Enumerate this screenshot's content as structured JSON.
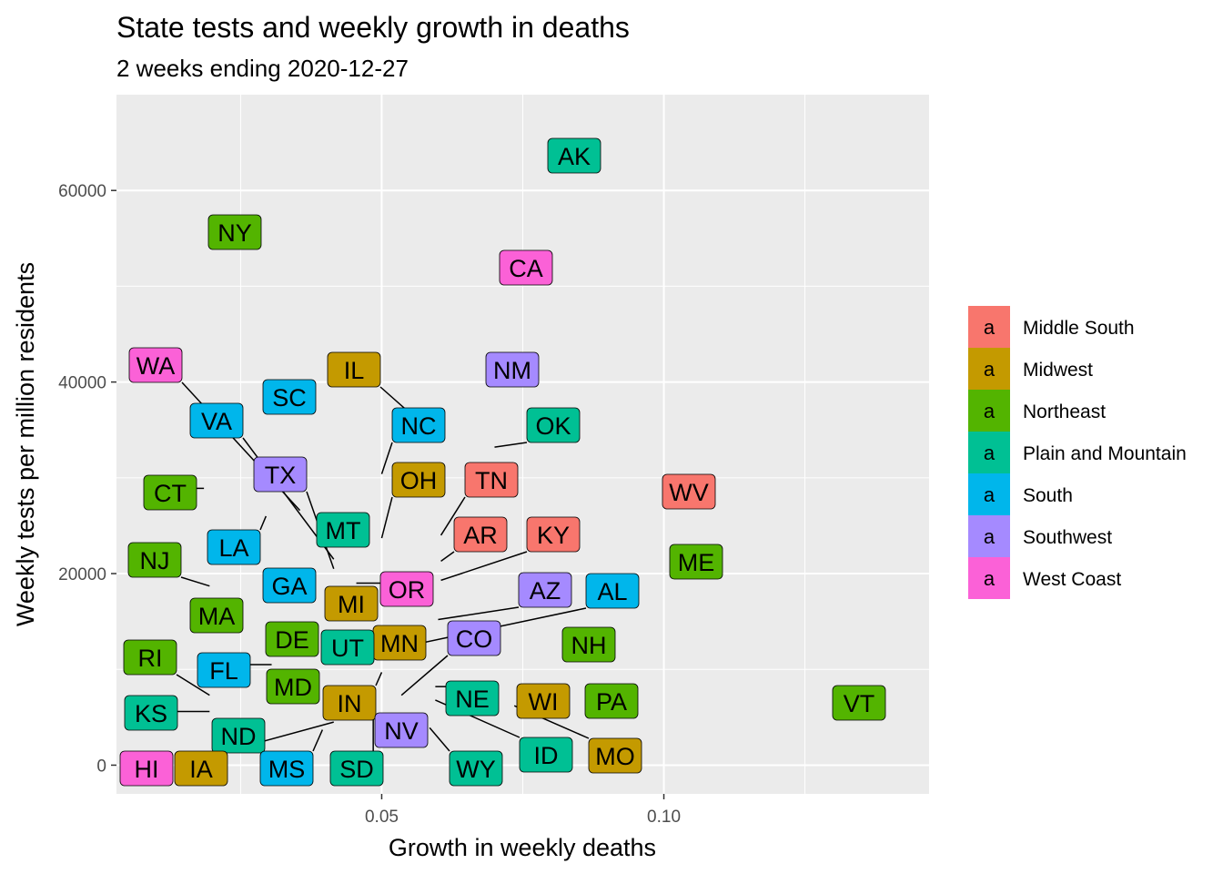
{
  "chart_data": {
    "type": "scatter",
    "title": "State tests and weekly growth in deaths",
    "subtitle": "2 weeks ending 2020-12-27",
    "xlabel": "Growth in weekly deaths",
    "ylabel": "Weekly tests per million residents",
    "xlim": [
      0.003,
      0.147
    ],
    "ylim": [
      -3000,
      70000
    ],
    "x_ticks": [
      0.05,
      0.1
    ],
    "x_tick_labels": [
      "0.05",
      "0.10"
    ],
    "x_minor": [
      0.025,
      0.075,
      0.125
    ],
    "y_ticks": [
      0,
      20000,
      40000,
      60000
    ],
    "y_tick_labels": [
      "0",
      "20000",
      "40000",
      "60000"
    ],
    "y_minor": [
      10000,
      30000,
      50000
    ],
    "grid": true,
    "legend_position": "right",
    "legend_key_glyph": "a",
    "regions": [
      {
        "name": "Middle South",
        "color": "#F8766D"
      },
      {
        "name": "Midwest",
        "color": "#C49A00"
      },
      {
        "name": "Northeast",
        "color": "#53B400"
      },
      {
        "name": "Plain and Mountain",
        "color": "#00C094"
      },
      {
        "name": "South",
        "color": "#00B6EB"
      },
      {
        "name": "Southwest",
        "color": "#A58AFF"
      },
      {
        "name": "West Coast",
        "color": "#FB61D7"
      }
    ],
    "points": [
      {
        "label": "AK",
        "region": "Plain and Mountain",
        "x": 0.0835,
        "y": 64800
      },
      {
        "label": "NY",
        "region": "Northeast",
        "x": 0.0255,
        "y": 56400
      },
      {
        "label": "CA",
        "region": "West Coast",
        "x": 0.0755,
        "y": 52700
      },
      {
        "label": "WA",
        "region": "West Coast",
        "x": 0.0355,
        "y": 26600
      },
      {
        "label": "IL",
        "region": "Midwest",
        "x": 0.0555,
        "y": 36500
      },
      {
        "label": "NM",
        "region": "Southwest",
        "x": 0.0725,
        "y": 42000
      },
      {
        "label": "SC",
        "region": "South",
        "x": 0.0325,
        "y": 39100
      },
      {
        "label": "VA",
        "region": "South",
        "x": 0.0415,
        "y": 21500
      },
      {
        "label": "NC",
        "region": "South",
        "x": 0.05,
        "y": 30400
      },
      {
        "label": "OK",
        "region": "Plain and Mountain",
        "x": 0.07,
        "y": 33200
      },
      {
        "label": "TX",
        "region": "Southwest",
        "x": 0.0415,
        "y": 20500
      },
      {
        "label": "OH",
        "region": "Midwest",
        "x": 0.05,
        "y": 23700
      },
      {
        "label": "TN",
        "region": "Middle South",
        "x": 0.0605,
        "y": 24000
      },
      {
        "label": "WV",
        "region": "Middle South",
        "x": 0.1045,
        "y": 29100
      },
      {
        "label": "CT",
        "region": "Northeast",
        "x": 0.0185,
        "y": 28900
      },
      {
        "label": "MT",
        "region": "Plain and Mountain",
        "x": 0.042,
        "y": 24500
      },
      {
        "label": "AR",
        "region": "Middle South",
        "x": 0.0605,
        "y": 21300
      },
      {
        "label": "KY",
        "region": "Middle South",
        "x": 0.0605,
        "y": 19300
      },
      {
        "label": "LA",
        "region": "South",
        "x": 0.0295,
        "y": 26000
      },
      {
        "label": "ME",
        "region": "Northeast",
        "x": 0.1055,
        "y": 22000
      },
      {
        "label": "NJ",
        "region": "Northeast",
        "x": 0.0195,
        "y": 18700
      },
      {
        "label": "OR",
        "region": "West Coast",
        "x": 0.0455,
        "y": 19000
      },
      {
        "label": "GA",
        "region": "South",
        "x": 0.0325,
        "y": 19200
      },
      {
        "label": "AZ",
        "region": "Southwest",
        "x": 0.06,
        "y": 15200
      },
      {
        "label": "AL",
        "region": "South",
        "x": 0.055,
        "y": 12500
      },
      {
        "label": "MI",
        "region": "Midwest",
        "x": 0.0445,
        "y": 17000
      },
      {
        "label": "MA",
        "region": "Northeast",
        "x": 0.0225,
        "y": 16300
      },
      {
        "label": "NH",
        "region": "Northeast",
        "x": 0.0915,
        "y": 12800
      },
      {
        "label": "DE",
        "region": "Northeast",
        "x": 0.0335,
        "y": 13800
      },
      {
        "label": "MN",
        "region": "Midwest",
        "x": 0.0455,
        "y": 13300
      },
      {
        "label": "CO",
        "region": "Southwest",
        "x": 0.0535,
        "y": 7300
      },
      {
        "label": "UT",
        "region": "Plain and Mountain",
        "x": 0.044,
        "y": 12700
      },
      {
        "label": "RI",
        "region": "Northeast",
        "x": 0.0195,
        "y": 7300
      },
      {
        "label": "FL",
        "region": "South",
        "x": 0.0305,
        "y": 10500
      },
      {
        "label": "MD",
        "region": "Northeast",
        "x": 0.0335,
        "y": 8600
      },
      {
        "label": "IN",
        "region": "Midwest",
        "x": 0.05,
        "y": 9700
      },
      {
        "label": "NE",
        "region": "Plain and Mountain",
        "x": 0.0595,
        "y": 8200
      },
      {
        "label": "WI",
        "region": "Midwest",
        "x": 0.0735,
        "y": 8200
      },
      {
        "label": "PA",
        "region": "Northeast",
        "x": 0.0855,
        "y": 7400
      },
      {
        "label": "VT",
        "region": "Northeast",
        "x": 0.1315,
        "y": 6800
      },
      {
        "label": "KS",
        "region": "Plain and Mountain",
        "x": 0.0195,
        "y": 5600
      },
      {
        "label": "NV",
        "region": "Southwest",
        "x": 0.0485,
        "y": 4000
      },
      {
        "label": "ND",
        "region": "Plain and Mountain",
        "x": 0.0235,
        "y": 3000
      },
      {
        "label": "ID",
        "region": "Plain and Mountain",
        "x": 0.0595,
        "y": 6800
      },
      {
        "label": "MO",
        "region": "Midwest",
        "x": 0.0735,
        "y": 6200
      },
      {
        "label": "HI",
        "region": "West Coast",
        "x": 0.0115,
        "y": 200
      },
      {
        "label": "IA",
        "region": "Midwest",
        "x": 0.0415,
        "y": 4500
      },
      {
        "label": "MS",
        "region": "South",
        "x": 0.0395,
        "y": 3700
      },
      {
        "label": "SD",
        "region": "Plain and Mountain",
        "x": 0.0485,
        "y": 7300
      },
      {
        "label": "WY",
        "region": "Plain and Mountain",
        "x": 0.0585,
        "y": 3900
      }
    ]
  }
}
